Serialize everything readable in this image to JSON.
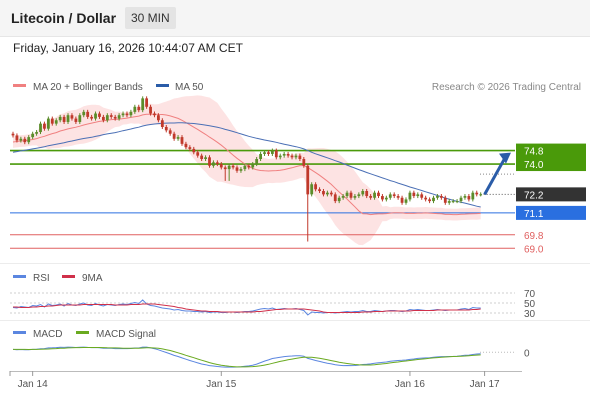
{
  "header": {
    "title": "Litecoin / Dollar",
    "timeframe": "30 MIN"
  },
  "datetime": "Friday, January 16, 2026 10:44:07 AM CET",
  "colors": {
    "candle_up": "#5b8c2a",
    "candle_down": "#c0392b",
    "ma20": "#f08080",
    "bollinger": "#fcd9d9",
    "ma50": "#4a6fb5",
    "green_level": "#4a9a0a",
    "blue_level": "#2a6fe0",
    "red_level": "#e06060",
    "price_box": "#333333",
    "arrow": "#2a5ca8",
    "rsi": "#5b86e0",
    "rsi_ma": "#d0304a",
    "macd": "#5b86e0",
    "macd_signal": "#6aaa20"
  },
  "chart_data": [
    {
      "type": "candlestick",
      "legend": [
        {
          "name": "MA 20 + Bollinger Bands",
          "color": "#f08080"
        },
        {
          "name": "MA 50",
          "color": "#2a5ca8"
        }
      ],
      "credit": "Research © 2026 Trading Central",
      "ylim": [
        68.6,
        78.1
      ],
      "levels": [
        {
          "value": 74.8,
          "label": "74.8",
          "kind": "resistance"
        },
        {
          "value": 74.0,
          "label": "74.0",
          "kind": "resistance"
        },
        {
          "value": 71.1,
          "label": "71.1",
          "kind": "support"
        },
        {
          "value": 69.8,
          "label": "69.8",
          "kind": "support"
        },
        {
          "value": 69.0,
          "label": "69.0",
          "kind": "support"
        }
      ],
      "last_price": {
        "value": 72.2,
        "label": "72.2"
      },
      "projection": {
        "from": 72.2,
        "to": 74.8
      },
      "x_ticks": [
        {
          "index": 5,
          "label": "Jan 14"
        },
        {
          "index": 53,
          "label": "Jan 15"
        },
        {
          "index": 101,
          "label": "Jan 16"
        },
        {
          "index": 120,
          "label": "Jan 17"
        }
      ],
      "close": [
        75.7,
        75.4,
        75.5,
        75.3,
        75.6,
        75.8,
        75.9,
        76.4,
        76.1,
        76.7,
        76.4,
        76.6,
        76.8,
        76.5,
        76.9,
        76.7,
        76.5,
        76.9,
        77.1,
        76.8,
        76.7,
        77.0,
        76.8,
        76.6,
        76.9,
        76.8,
        76.7,
        76.9,
        77.0,
        76.9,
        77.1,
        77.4,
        77.2,
        77.9,
        77.4,
        77.0,
        76.9,
        76.6,
        76.2,
        76.0,
        75.8,
        75.5,
        75.6,
        75.2,
        75.0,
        74.9,
        74.7,
        74.5,
        74.3,
        74.4,
        73.9,
        74.1,
        74.0,
        73.8,
        73.7,
        73.9,
        73.8,
        73.6,
        73.7,
        73.9,
        73.8,
        74.0,
        74.3,
        74.6,
        74.7,
        74.6,
        74.8,
        74.4,
        74.5,
        74.6,
        74.5,
        74.4,
        74.5,
        74.3,
        73.9,
        72.2,
        72.8,
        72.5,
        72.4,
        72.2,
        72.3,
        72.2,
        71.8,
        72.0,
        72.1,
        72.3,
        72.0,
        72.1,
        72.2,
        72.4,
        72.1,
        72.0,
        72.3,
        72.1,
        71.9,
        72.0,
        72.2,
        72.1,
        72.0,
        71.7,
        71.9,
        72.3,
        72.1,
        72.2,
        72.0,
        71.9,
        71.8,
        72.0,
        72.1,
        72.0,
        71.7,
        71.8,
        71.8,
        71.8,
        72.0,
        72.1,
        71.9,
        72.3,
        72.2,
        72.2
      ],
      "ma20": [
        75.31,
        75.34,
        75.37,
        75.38,
        75.42,
        75.46,
        75.51,
        75.59,
        75.65,
        75.73,
        75.81,
        75.87,
        75.96,
        76.02,
        76.09,
        76.14,
        76.19,
        76.25,
        76.32,
        76.38,
        76.43,
        76.48,
        76.53,
        76.56,
        76.6,
        76.64,
        76.65,
        76.67,
        76.7,
        76.73,
        76.77,
        76.81,
        76.85,
        76.92,
        76.96,
        76.96,
        76.96,
        76.95,
        76.94,
        76.91,
        76.86,
        76.79,
        76.71,
        76.6,
        76.47,
        76.33,
        76.19,
        76.06,
        75.91,
        75.76,
        75.6,
        75.45,
        75.29,
        75.12,
        74.93,
        74.73,
        74.53,
        74.34,
        74.17,
        74.0,
        73.86,
        73.74,
        73.66,
        73.62,
        73.6,
        73.59,
        73.6,
        73.61,
        73.63,
        73.67,
        73.73,
        73.78,
        73.85,
        73.91,
        73.91,
        73.79,
        73.64,
        73.49,
        73.34,
        73.16,
        72.98,
        72.79,
        72.56,
        72.34,
        72.13,
        71.92,
        71.69,
        71.46,
        71.22,
        71.05,
        71.04,
        71.0,
        71.03,
        71.04,
        71.04,
        71.06,
        71.09,
        71.11,
        71.11,
        71.1,
        71.07,
        71.08,
        71.07,
        71.09,
        71.09,
        71.1,
        71.09,
        71.07,
        71.06,
        71.05,
        71.01,
        71.01,
        71.0,
        71.0,
        71.02,
        71.03,
        71.04,
        71.05,
        71.06,
        71.07
      ],
      "ma50": [
        74.7,
        74.74,
        74.78,
        74.82,
        74.86,
        74.9,
        74.94,
        74.98,
        75.03,
        75.09,
        75.13,
        75.17,
        75.22,
        75.27,
        75.32,
        75.37,
        75.42,
        75.47,
        75.52,
        75.55,
        75.59,
        75.64,
        75.69,
        75.75,
        75.79,
        75.83,
        75.87,
        75.92,
        75.98,
        76.03,
        76.08,
        76.14,
        76.19,
        76.26,
        76.31,
        76.35,
        76.38,
        76.4,
        76.42,
        76.43,
        76.44,
        76.44,
        76.45,
        76.45,
        76.44,
        76.42,
        76.41,
        76.38,
        76.35,
        76.31,
        76.27,
        76.23,
        76.18,
        76.13,
        76.06,
        76.0,
        75.93,
        75.86,
        75.79,
        75.72,
        75.65,
        75.59,
        75.53,
        75.48,
        75.43,
        75.38,
        75.34,
        75.29,
        75.23,
        75.18,
        75.13,
        75.08,
        75.03,
        74.97,
        74.9,
        74.8,
        74.7,
        74.61,
        74.53,
        74.45,
        74.37,
        74.29,
        74.2,
        74.12,
        74.03,
        73.94,
        73.85,
        73.76,
        73.67,
        73.59,
        73.5,
        73.42,
        73.34,
        73.26,
        73.18,
        73.1,
        73.02,
        72.95,
        72.87,
        72.79,
        72.72,
        72.64,
        72.57,
        72.5,
        72.43,
        72.35,
        72.28,
        72.21,
        72.13,
        72.06,
        71.98,
        71.92,
        71.85,
        71.79,
        71.73,
        71.68,
        71.62,
        71.56,
        71.5,
        71.45
      ]
    },
    {
      "type": "line",
      "name": "RSI",
      "legend": [
        {
          "name": "RSI",
          "color": "#5b86e0"
        },
        {
          "name": "9MA",
          "color": "#d0304a"
        }
      ],
      "ylim": [
        20,
        80
      ],
      "y_ticks": [
        {
          "value": 70,
          "label": "70"
        },
        {
          "value": 50,
          "label": "50"
        },
        {
          "value": 30,
          "label": "30"
        }
      ],
      "rsi": [
        41,
        40,
        43,
        42,
        41,
        45,
        44,
        47,
        42,
        48,
        45,
        46,
        48,
        44,
        49,
        46,
        45,
        48,
        50,
        46,
        45,
        49,
        46,
        44,
        47,
        46,
        45,
        47,
        48,
        47,
        49,
        51,
        49,
        56,
        48,
        45,
        44,
        42,
        40,
        39,
        38,
        36,
        37,
        35,
        34,
        34,
        33,
        33,
        32,
        33,
        31,
        32,
        32,
        31,
        31,
        32,
        32,
        31,
        32,
        33,
        33,
        34,
        36,
        38,
        39,
        38,
        40,
        37,
        38,
        39,
        38,
        38,
        39,
        37,
        35,
        26,
        32,
        31,
        31,
        30,
        31,
        31,
        30,
        31,
        32,
        33,
        32,
        33,
        33,
        35,
        33,
        33,
        35,
        34,
        33,
        34,
        35,
        35,
        34,
        33,
        34,
        37,
        36,
        37,
        36,
        35,
        35,
        36,
        37,
        36,
        35,
        36,
        36,
        36,
        38,
        39,
        37,
        41,
        40,
        40
      ],
      "ma9": [
        42,
        42,
        41,
        41,
        41,
        42,
        42,
        43,
        43,
        44,
        44,
        45,
        46,
        46,
        46,
        46,
        46,
        46,
        47,
        47,
        47,
        47,
        47,
        47,
        47,
        47,
        46,
        46,
        46,
        46,
        47,
        47,
        47,
        48,
        48,
        48,
        48,
        47,
        46,
        45,
        44,
        43,
        41,
        40,
        38,
        37,
        36,
        35,
        34,
        34,
        33,
        33,
        33,
        32,
        32,
        32,
        32,
        32,
        32,
        32,
        32,
        32,
        33,
        33,
        34,
        35,
        36,
        37,
        37,
        38,
        38,
        38,
        38,
        38,
        38,
        37,
        36,
        35,
        34,
        32,
        31,
        31,
        31,
        31,
        31,
        31,
        31,
        31,
        31,
        32,
        32,
        32,
        33,
        33,
        33,
        34,
        34,
        34,
        34,
        34,
        34,
        34,
        35,
        35,
        35,
        35,
        35,
        35,
        36,
        36,
        36,
        36,
        36,
        36,
        36,
        36,
        36,
        37,
        37,
        38
      ]
    },
    {
      "type": "line",
      "name": "MACD",
      "legend": [
        {
          "name": "MACD",
          "color": "#5b86e0"
        },
        {
          "name": "MACD Signal",
          "color": "#6aaa20"
        }
      ],
      "ylim": [
        -1.3,
        0.9
      ],
      "y_ticks": [
        {
          "value": 0,
          "label": "0"
        }
      ],
      "macd": [
        0.21,
        0.19,
        0.2,
        0.19,
        0.18,
        0.21,
        0.22,
        0.26,
        0.27,
        0.32,
        0.33,
        0.34,
        0.37,
        0.36,
        0.38,
        0.37,
        0.35,
        0.37,
        0.38,
        0.36,
        0.34,
        0.35,
        0.33,
        0.3,
        0.3,
        0.29,
        0.27,
        0.27,
        0.28,
        0.27,
        0.28,
        0.31,
        0.31,
        0.38,
        0.38,
        0.32,
        0.26,
        0.18,
        0.08,
        -0.02,
        -0.12,
        -0.23,
        -0.31,
        -0.41,
        -0.51,
        -0.6,
        -0.69,
        -0.78,
        -0.86,
        -0.91,
        -0.98,
        -1.01,
        -1.04,
        -1.07,
        -1.09,
        -1.09,
        -1.09,
        -1.08,
        -1.06,
        -1.03,
        -1.0,
        -0.95,
        -0.87,
        -0.76,
        -0.65,
        -0.56,
        -0.46,
        -0.41,
        -0.36,
        -0.32,
        -0.29,
        -0.27,
        -0.25,
        -0.25,
        -0.29,
        -0.45,
        -0.52,
        -0.6,
        -0.67,
        -0.74,
        -0.8,
        -0.85,
        -0.92,
        -0.95,
        -0.98,
        -0.97,
        -0.98,
        -0.97,
        -0.94,
        -0.9,
        -0.88,
        -0.85,
        -0.8,
        -0.77,
        -0.74,
        -0.71,
        -0.66,
        -0.63,
        -0.6,
        -0.59,
        -0.57,
        -0.52,
        -0.49,
        -0.45,
        -0.43,
        -0.41,
        -0.4,
        -0.37,
        -0.34,
        -0.32,
        -0.32,
        -0.31,
        -0.3,
        -0.29,
        -0.26,
        -0.22,
        -0.21,
        -0.16,
        -0.13,
        -0.11
      ],
      "signal": [
        0.21,
        0.21,
        0.21,
        0.21,
        0.2,
        0.21,
        0.21,
        0.22,
        0.23,
        0.24,
        0.26,
        0.27,
        0.29,
        0.3,
        0.32,
        0.33,
        0.34,
        0.34,
        0.35,
        0.35,
        0.35,
        0.35,
        0.35,
        0.34,
        0.33,
        0.32,
        0.32,
        0.31,
        0.3,
        0.3,
        0.3,
        0.3,
        0.3,
        0.31,
        0.33,
        0.33,
        0.31,
        0.29,
        0.25,
        0.19,
        0.13,
        0.05,
        -0.04,
        -0.13,
        -0.22,
        -0.31,
        -0.4,
        -0.49,
        -0.58,
        -0.67,
        -0.76,
        -0.83,
        -0.9,
        -0.95,
        -0.99,
        -1.03,
        -1.05,
        -1.07,
        -1.07,
        -1.07,
        -1.06,
        -1.05,
        -1.02,
        -0.99,
        -0.94,
        -0.88,
        -0.81,
        -0.74,
        -0.67,
        -0.61,
        -0.55,
        -0.5,
        -0.45,
        -0.4,
        -0.37,
        -0.37,
        -0.37,
        -0.4,
        -0.44,
        -0.49,
        -0.55,
        -0.61,
        -0.67,
        -0.73,
        -0.78,
        -0.82,
        -0.86,
        -0.9,
        -0.92,
        -0.93,
        -0.93,
        -0.93,
        -0.91,
        -0.88,
        -0.85,
        -0.82,
        -0.78,
        -0.74,
        -0.71,
        -0.67,
        -0.64,
        -0.6,
        -0.57,
        -0.53,
        -0.5,
        -0.47,
        -0.44,
        -0.41,
        -0.39,
        -0.37,
        -0.35,
        -0.33,
        -0.31,
        -0.3,
        -0.29,
        -0.27,
        -0.25,
        -0.23,
        -0.21,
        -0.19
      ]
    }
  ]
}
